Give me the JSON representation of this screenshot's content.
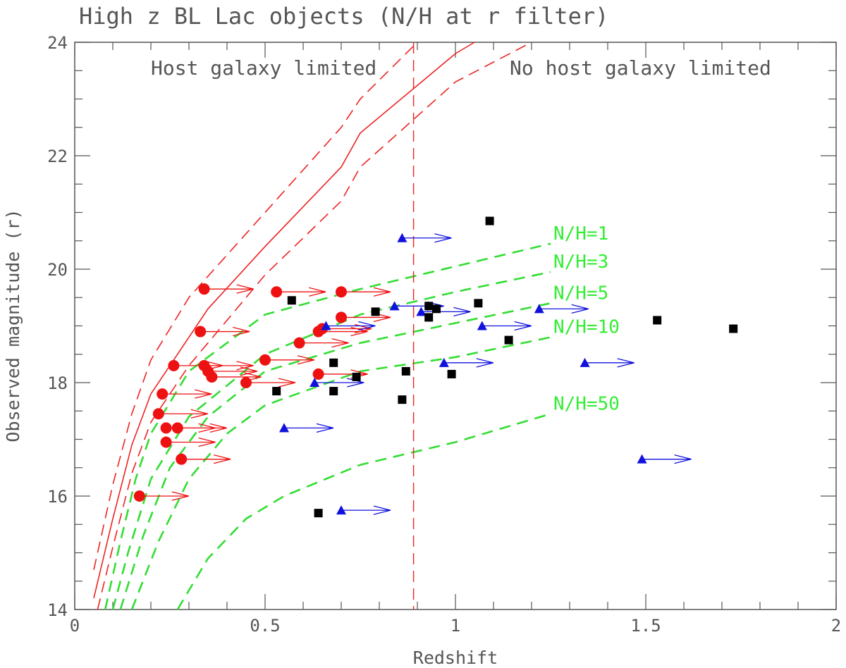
{
  "chart_data": {
    "type": "scatter",
    "title": "High z BL Lac objects (N/H at r filter)",
    "xlabel": "Redshift",
    "ylabel": "Observed magnitude (r)",
    "xlim": [
      0,
      2
    ],
    "ylim": [
      14,
      24
    ],
    "x_ticks": [
      0,
      0.5,
      1,
      1.5,
      2
    ],
    "x_tick_labels": [
      "0",
      "0.5",
      "1",
      "1.5",
      "2"
    ],
    "y_ticks": [
      14,
      16,
      18,
      20,
      22,
      24
    ],
    "y_tick_labels": [
      "14",
      "16",
      "18",
      "20",
      "22",
      "24"
    ],
    "region_labels": {
      "left": "Host galaxy limited",
      "right": "No host galaxy limited"
    },
    "divider_x": 0.89,
    "colors": {
      "host": "#ee2222",
      "nh": "#33dd33",
      "circle": "#ee1111",
      "triangle": "#1111dd",
      "square": "#000000",
      "axis": "#555555"
    },
    "host_curves": {
      "center": [
        [
          0.05,
          14.2
        ],
        [
          0.1,
          15.6
        ],
        [
          0.15,
          16.9
        ],
        [
          0.2,
          17.8
        ],
        [
          0.3,
          18.8
        ],
        [
          0.35,
          19.3
        ],
        [
          0.5,
          20.4
        ],
        [
          0.7,
          21.8
        ],
        [
          0.75,
          22.4
        ],
        [
          1.0,
          23.8
        ],
        [
          1.05,
          24.0
        ]
      ],
      "upper": [
        [
          0.05,
          14.7
        ],
        [
          0.1,
          16.2
        ],
        [
          0.15,
          17.45
        ],
        [
          0.2,
          18.4
        ],
        [
          0.3,
          19.5
        ],
        [
          0.5,
          21.0
        ],
        [
          0.7,
          22.5
        ],
        [
          0.75,
          23.0
        ],
        [
          0.9,
          24.0
        ]
      ],
      "lower": [
        [
          0.06,
          14.0
        ],
        [
          0.1,
          15.1
        ],
        [
          0.15,
          16.4
        ],
        [
          0.2,
          17.3
        ],
        [
          0.3,
          18.3
        ],
        [
          0.35,
          18.7
        ],
        [
          0.5,
          19.9
        ],
        [
          0.7,
          21.2
        ],
        [
          0.75,
          21.8
        ],
        [
          0.9,
          22.7
        ],
        [
          1.0,
          23.3
        ],
        [
          1.2,
          24.0
        ]
      ]
    },
    "nh_curves": [
      {
        "label": "N/H=1",
        "points": [
          [
            0.08,
            14.0
          ],
          [
            0.12,
            15.2
          ],
          [
            0.16,
            16.3
          ],
          [
            0.2,
            17.1
          ],
          [
            0.3,
            18.2
          ],
          [
            0.5,
            19.2
          ],
          [
            0.75,
            19.65
          ],
          [
            1.0,
            20.05
          ],
          [
            1.25,
            20.45
          ]
        ]
      },
      {
        "label": "N/H=3",
        "points": [
          [
            0.1,
            14.0
          ],
          [
            0.14,
            15.0
          ],
          [
            0.2,
            16.3
          ],
          [
            0.3,
            17.4
          ],
          [
            0.5,
            18.5
          ],
          [
            0.75,
            19.2
          ],
          [
            1.0,
            19.6
          ],
          [
            1.25,
            19.95
          ]
        ]
      },
      {
        "label": "N/H=5",
        "points": [
          [
            0.12,
            14.0
          ],
          [
            0.18,
            15.3
          ],
          [
            0.25,
            16.5
          ],
          [
            0.35,
            17.4
          ],
          [
            0.5,
            18.2
          ],
          [
            0.75,
            18.7
          ],
          [
            1.0,
            19.05
          ],
          [
            1.25,
            19.4
          ]
        ]
      },
      {
        "label": "N/H=10",
        "points": [
          [
            0.15,
            14.0
          ],
          [
            0.22,
            15.2
          ],
          [
            0.3,
            16.3
          ],
          [
            0.4,
            17.1
          ],
          [
            0.5,
            17.6
          ],
          [
            0.75,
            18.2
          ],
          [
            1.0,
            18.45
          ],
          [
            1.25,
            18.8
          ]
        ]
      },
      {
        "label": "N/H=50",
        "points": [
          [
            0.27,
            14.0
          ],
          [
            0.35,
            14.9
          ],
          [
            0.45,
            15.6
          ],
          [
            0.55,
            16.0
          ],
          [
            0.75,
            16.55
          ],
          [
            1.0,
            16.95
          ],
          [
            1.25,
            17.45
          ]
        ]
      }
    ],
    "circles_lower_limit": [
      [
        0.17,
        16.0
      ],
      [
        0.23,
        17.8
      ],
      [
        0.22,
        17.45
      ],
      [
        0.24,
        17.2
      ],
      [
        0.24,
        16.95
      ],
      [
        0.27,
        17.2
      ],
      [
        0.28,
        16.65
      ],
      [
        0.26,
        18.3
      ],
      [
        0.34,
        19.65
      ],
      [
        0.33,
        18.9
      ],
      [
        0.34,
        18.3
      ],
      [
        0.35,
        18.2
      ],
      [
        0.36,
        18.1
      ],
      [
        0.45,
        18.0
      ],
      [
        0.5,
        18.4
      ],
      [
        0.53,
        19.6
      ],
      [
        0.59,
        18.7
      ],
      [
        0.64,
        18.15
      ],
      [
        0.64,
        18.9
      ],
      [
        0.65,
        18.95
      ],
      [
        0.7,
        19.6
      ],
      [
        0.7,
        19.15
      ]
    ],
    "triangles_lower_limit": [
      [
        0.55,
        17.2
      ],
      [
        0.63,
        18.0
      ],
      [
        0.66,
        19.0
      ],
      [
        0.7,
        15.75
      ],
      [
        0.84,
        19.35
      ],
      [
        0.86,
        20.55
      ],
      [
        0.91,
        19.25
      ],
      [
        0.97,
        18.35
      ],
      [
        1.07,
        19.0
      ],
      [
        1.22,
        19.3
      ],
      [
        1.34,
        18.35
      ],
      [
        1.49,
        16.65
      ]
    ],
    "squares": [
      [
        0.53,
        17.85
      ],
      [
        0.57,
        19.45
      ],
      [
        0.64,
        15.7
      ],
      [
        0.68,
        17.85
      ],
      [
        0.68,
        18.35
      ],
      [
        0.74,
        18.1
      ],
      [
        0.79,
        19.25
      ],
      [
        0.86,
        17.7
      ],
      [
        0.87,
        18.2
      ],
      [
        0.93,
        19.35
      ],
      [
        0.93,
        19.15
      ],
      [
        0.95,
        19.3
      ],
      [
        0.99,
        18.15
      ],
      [
        1.06,
        19.4
      ],
      [
        1.09,
        20.85
      ],
      [
        1.14,
        18.75
      ],
      [
        1.53,
        19.1
      ],
      [
        1.73,
        18.95
      ]
    ]
  }
}
